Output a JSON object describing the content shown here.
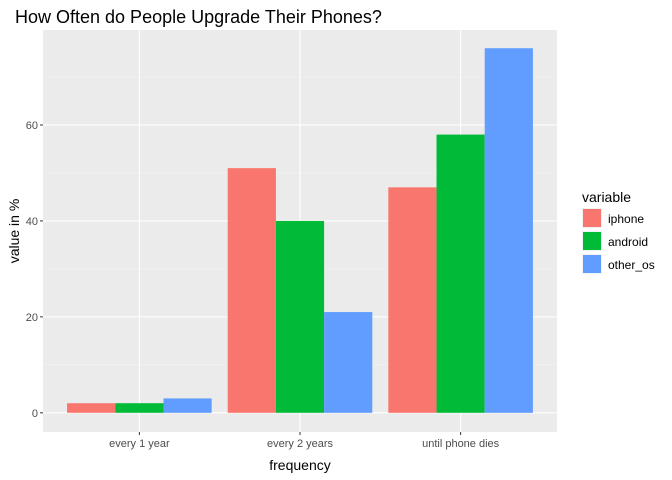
{
  "chart_data": {
    "type": "bar",
    "title": "How Often do People Upgrade Their Phones?",
    "xlabel": "frequency",
    "ylabel": "value in %",
    "categories": [
      "every 1 year",
      "every 2 years",
      "until phone dies"
    ],
    "series": [
      {
        "name": "iphone",
        "color": "#F8766D",
        "values": [
          2,
          51,
          47
        ]
      },
      {
        "name": "android",
        "color": "#00BA38",
        "values": [
          2,
          40,
          58
        ]
      },
      {
        "name": "other_os",
        "color": "#619CFF",
        "values": [
          3,
          21,
          76
        ]
      }
    ],
    "ylim": [
      -4,
      79.8
    ],
    "yticks": [
      0,
      20,
      40,
      60
    ],
    "grid": true,
    "legend": {
      "title": "variable",
      "placement": "right"
    }
  }
}
